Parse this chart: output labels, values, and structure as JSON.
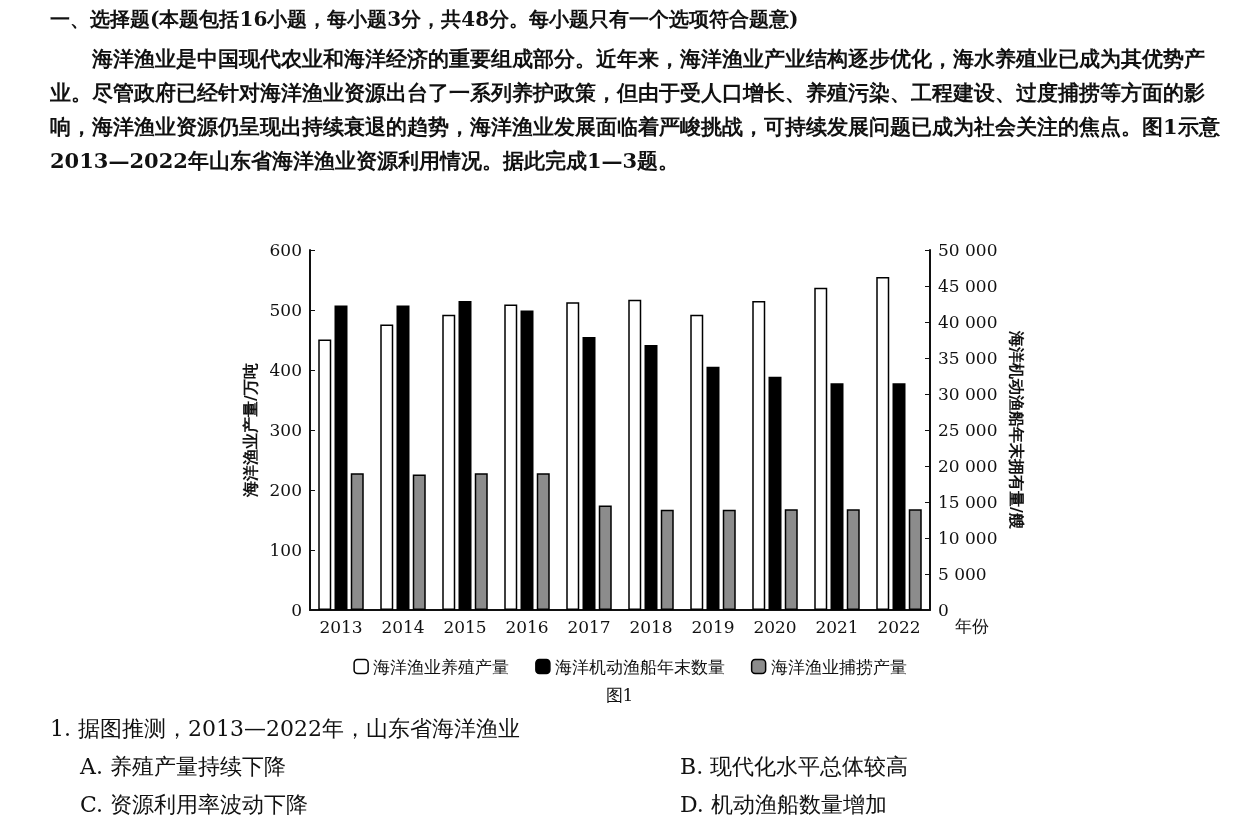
{
  "chart_data": {
    "type": "bar",
    "title": "一、选择题(本题包括16小题，每小题3分，共48分。每小题只有一个选项符合题意)",
    "subtitle": "海洋渔业是中国现代农业和海洋经济的重要组成部分。近年来，海洋渔业产业结构逐步优化，海水养殖业已成为其优势产业。尽管政府已经针对海洋渔业资源出台了一系列养护政策，但由于受人口增长、养殖污染、工程建设、过度捕捞等方面的影响，海洋渔业资源仍呈现出持续衰退的趋势，海洋渔业发展面临着严峻挑战，可持续发展问题已成为社会关注的焦点。图1示意2013—2022年山东省海洋渔业资源利用情况。据此完成1—3题。",
    "xlabel": "年份",
    "ylabel": "海洋渔业产量/万吨",
    "y2label": "海洋机动渔船年末拥有量/艘",
    "categories": [
      "2013",
      "2014",
      "2015",
      "2016",
      "2017",
      "2018",
      "2019",
      "2020",
      "2021",
      "2022"
    ],
    "series": [
      {
        "name": "海洋渔业养殖产量",
        "color": "#ffffff",
        "values": [
          451,
          476,
          492,
          509,
          513,
          517,
          492,
          515,
          537,
          555
        ]
      },
      {
        "name": "海洋机动渔船年末数量",
        "color": "#000000",
        "axis": "y2",
        "values": [
          42300,
          42300,
          42900,
          41600,
          37900,
          36800,
          33800,
          32400,
          31500,
          31500
        ]
      },
      {
        "name": "海洋渔业捕捞产量",
        "color": "#8c8c8c",
        "values": [
          228,
          226,
          228,
          228,
          174,
          167,
          167,
          168,
          168,
          168
        ]
      }
    ],
    "ylim": [
      0,
      600
    ],
    "yticks": [
      0,
      100,
      200,
      300,
      400,
      500,
      600
    ],
    "y2lim": [
      0,
      50000
    ],
    "y2ticks": [
      0,
      {
        "value": 5000,
        "label": "5 000"
      },
      {
        "value": 10000,
        "label": "10 000"
      },
      {
        "value": 15000,
        "label": "15 000"
      },
      {
        "value": 20000,
        "label": "20 000"
      },
      {
        "value": 25000,
        "label": "25 000"
      },
      {
        "value": 30000,
        "label": "30 000"
      },
      {
        "value": 35000,
        "label": "35 000"
      },
      {
        "value": 40000,
        "label": "40 000"
      },
      {
        "value": 45000,
        "label": "45 000"
      },
      {
        "value": 50000,
        "label": "50 000"
      }
    ],
    "grid": false,
    "legend": "bottom",
    "annotations": [
      "图1",
      "1. 据图推测，2013—2022年，山东省海洋渔业",
      "A. 养殖产量持续下降",
      "B. 现代化水平总体较高",
      "C. 资源利用率波动下降",
      "D. 机动渔船数量增加"
    ]
  }
}
